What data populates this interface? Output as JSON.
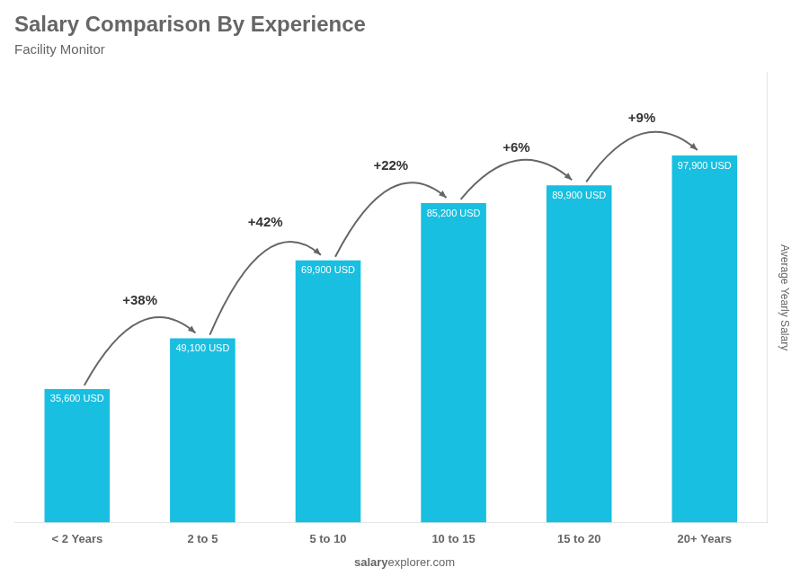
{
  "chart_data": {
    "type": "bar",
    "title": "Salary Comparison By Experience",
    "subtitle": "Facility Monitor",
    "categories": [
      "< 2 Years",
      "2 to 5",
      "5 to 10",
      "10 to 15",
      "15 to 20",
      "20+ Years"
    ],
    "values": [
      35600,
      49100,
      69900,
      85200,
      89900,
      97900
    ],
    "value_labels": [
      "35,600 USD",
      "49,100 USD",
      "69,900 USD",
      "85,200 USD",
      "89,900 USD",
      "97,900 USD"
    ],
    "data_labels": true,
    "color": "#18bfe0",
    "ylim": [
      0,
      120000
    ],
    "ylabel": "Average Yearly Salary",
    "tick_labels": "x",
    "grid": false,
    "annotations": [
      {
        "text": "+38%",
        "between": [
          "< 2 Years",
          "2 to 5"
        ]
      },
      {
        "text": "+42%",
        "between": [
          "2 to 5",
          "5 to 10"
        ]
      },
      {
        "text": "+22%",
        "between": [
          "5 to 10",
          "10 to 15"
        ]
      },
      {
        "text": "+6%",
        "between": [
          "10 to 15",
          "15 to 20"
        ]
      },
      {
        "text": "+9%",
        "between": [
          "15 to 20",
          "20+ Years"
        ]
      }
    ],
    "watermark": {
      "bold": "salary",
      "normal": "explorer.com"
    }
  }
}
